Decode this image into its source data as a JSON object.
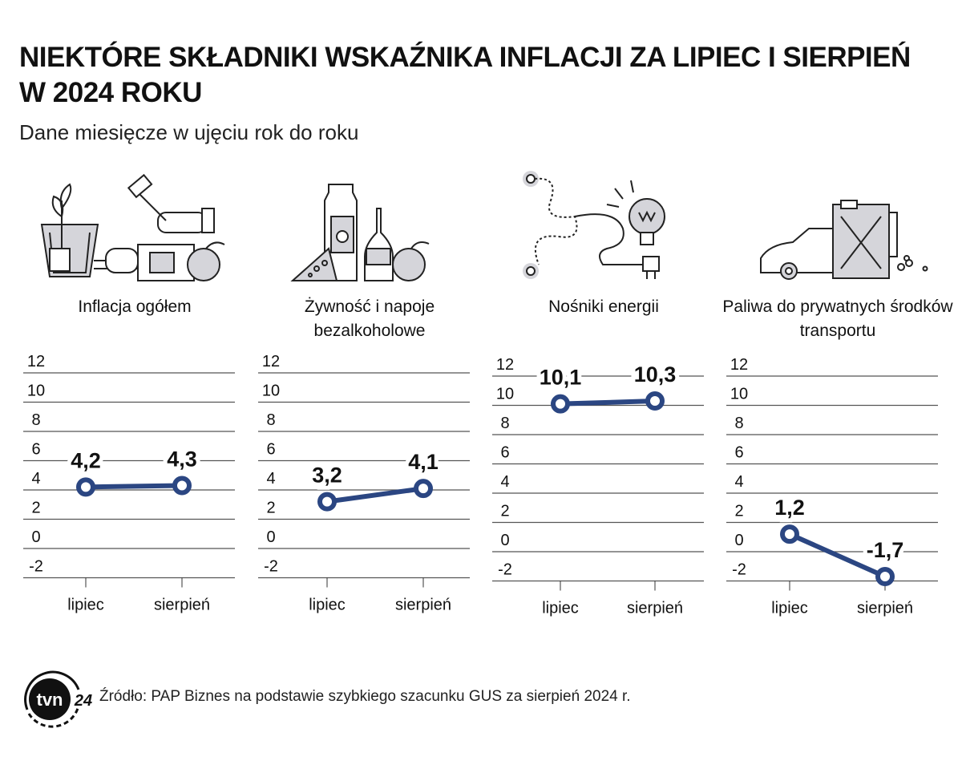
{
  "title_line1": "NIEKTÓRE SKŁADNIKI WSKAŹNIKA INFLACJI ZA LIPIEC I SIERPIEŃ",
  "title_line2": "W 2024 ROKU",
  "subtitle": "Dane miesięcze w ujęciu rok do roku",
  "source": "Źródło: PAP Biznes na podstawie szybkiego szacunku GUS za sierpień 2024 r.",
  "logo_text": "tvn24",
  "colors": {
    "series": "#2b4682",
    "grid": "#555555",
    "icon_shade": "#d5d5da"
  },
  "chart_data": [
    {
      "type": "line",
      "title": "Inflacja ogółem",
      "icon": "household-goods-icon",
      "categories": [
        "lipiec",
        "sierpień"
      ],
      "values": [
        4.2,
        4.3
      ],
      "labels": [
        "4,2",
        "4,3"
      ],
      "yticks": [
        "12",
        "10",
        "8",
        "6",
        "4",
        "2",
        "0",
        "-2"
      ],
      "ylim": [
        -2,
        12
      ],
      "grid": true
    },
    {
      "type": "line",
      "title": "Żywność i napoje bezalkoholowe",
      "icon": "food-drinks-icon",
      "categories": [
        "lipiec",
        "sierpień"
      ],
      "values": [
        3.2,
        4.1
      ],
      "labels": [
        "3,2",
        "4,1"
      ],
      "yticks": [
        "12",
        "10",
        "8",
        "6",
        "4",
        "2",
        "0",
        "-2"
      ],
      "ylim": [
        -2,
        12
      ],
      "grid": true
    },
    {
      "type": "line",
      "title": "Nośniki energii",
      "icon": "lightbulb-plug-icon",
      "categories": [
        "lipiec",
        "sierpień"
      ],
      "values": [
        10.1,
        10.3
      ],
      "labels": [
        "10,1",
        "10,3"
      ],
      "yticks": [
        "12",
        "10",
        "8",
        "6",
        "4",
        "2",
        "0",
        "-2"
      ],
      "ylim": [
        -2,
        12
      ],
      "grid": true
    },
    {
      "type": "line",
      "title": "Paliwa do prywatnych środków transportu",
      "icon": "car-fuel-can-icon",
      "categories": [
        "lipiec",
        "sierpień"
      ],
      "values": [
        1.2,
        -1.7
      ],
      "labels": [
        "1,2",
        "-1,7"
      ],
      "yticks": [
        "12",
        "10",
        "8",
        "6",
        "4",
        "2",
        "0",
        "-2"
      ],
      "ylim": [
        -2,
        12
      ],
      "grid": true
    }
  ]
}
